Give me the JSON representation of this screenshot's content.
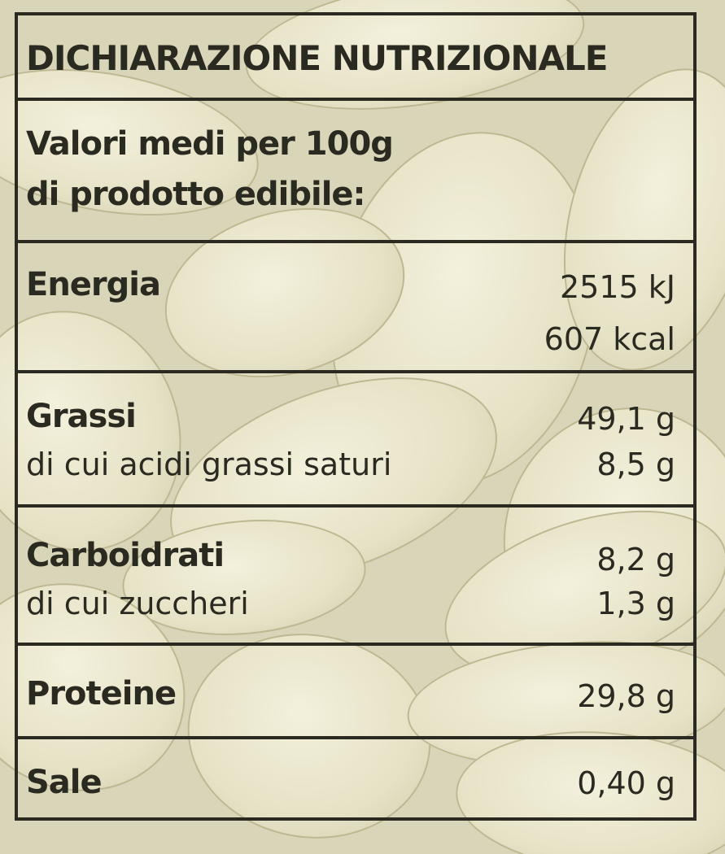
{
  "title": "DICHIARAZIONE NUTRIZIONALE",
  "subtitle_line1": "Valori medi per 100g",
  "subtitle_line2": "di prodotto edibile:",
  "rows": {
    "energia": {
      "label": "Energia",
      "value_kj": "2515 kJ",
      "value_kcal": "607 kcal"
    },
    "grassi": {
      "label": "Grassi",
      "value": "49,1 g",
      "sub_label": "di cui acidi grassi saturi",
      "sub_value": "8,5 g"
    },
    "carboidrati": {
      "label": "Carboidrati",
      "value": "8,2 g",
      "sub_label": "di cui zuccheri",
      "sub_value": "1,3 g"
    },
    "proteine": {
      "label": "Proteine",
      "value": "29,8 g"
    },
    "sale": {
      "label": "Sale",
      "value": "0,40 g"
    }
  },
  "colors": {
    "ink": "#2b2a20",
    "seed": "#e8e4c8",
    "background": "#d9d5b8"
  }
}
